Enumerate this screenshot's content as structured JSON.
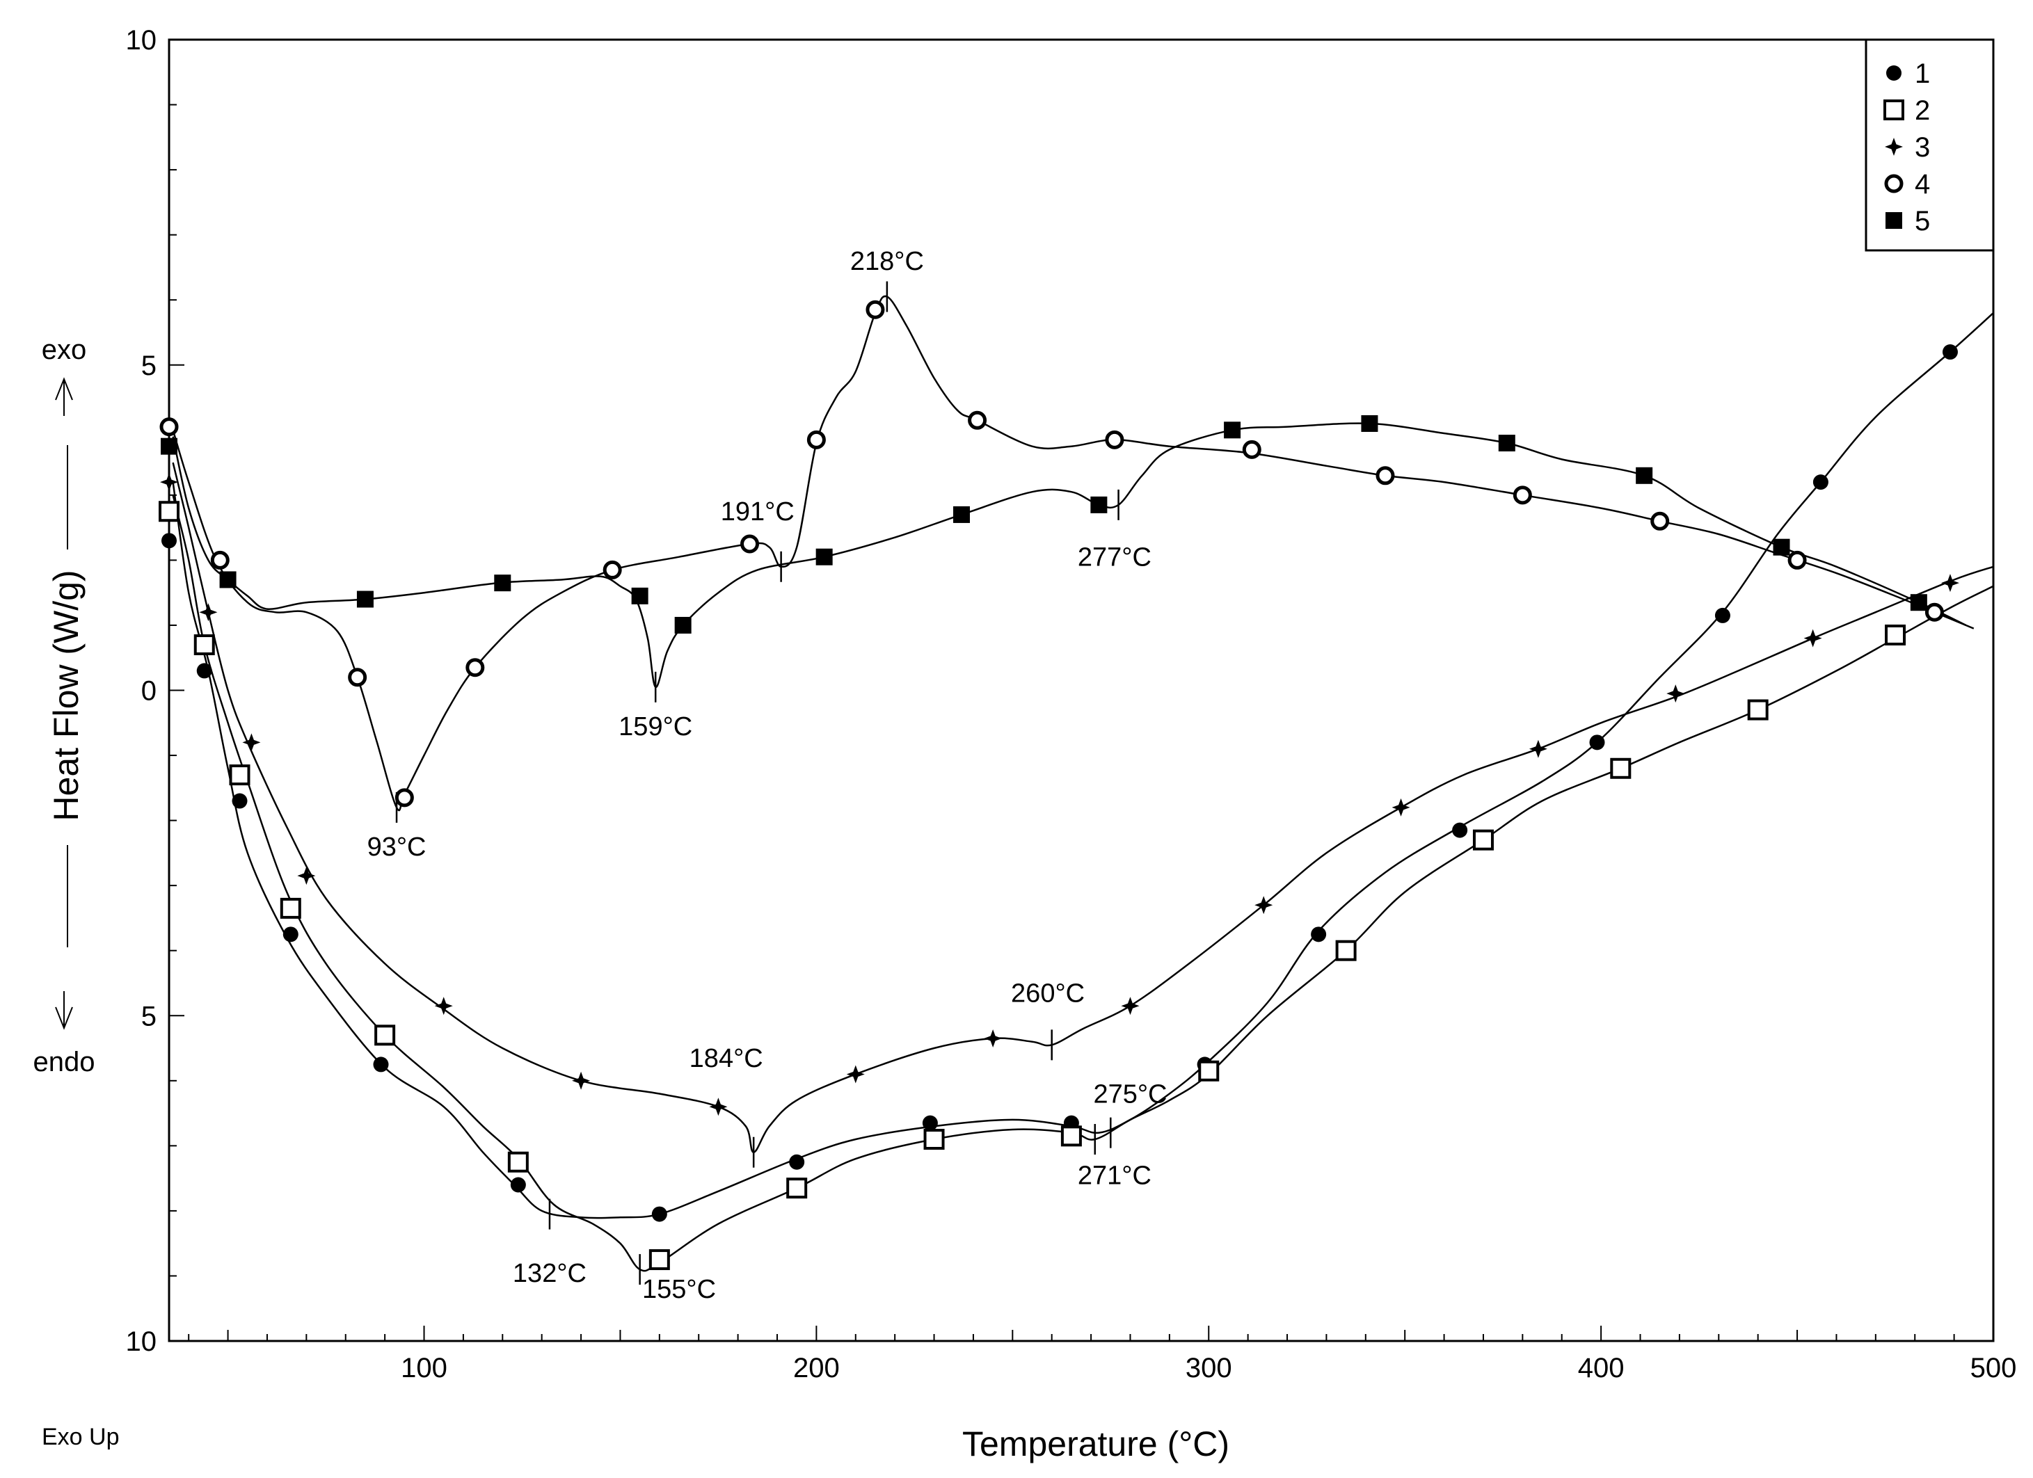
{
  "chart_data": {
    "type": "line",
    "title": "",
    "xlabel": "Temperature (°C)",
    "ylabel": "Heat Flow (W/g)",
    "xlim": [
      35,
      500
    ],
    "ylim": [
      -10,
      10
    ],
    "x_ticks": [
      100,
      200,
      300,
      400,
      500
    ],
    "y_ticks": [
      {
        "value": 10,
        "label": "10"
      },
      {
        "value": 5,
        "label": "5"
      },
      {
        "value": 0,
        "label": "0"
      },
      {
        "value": -5,
        "label": "5"
      },
      {
        "value": -10,
        "label": "10"
      }
    ],
    "exo_label": "exo",
    "endo_label": "endo",
    "corner_label": "Exo Up",
    "legend_position": "top-right",
    "series": [
      {
        "name": "1",
        "marker": "filled-circle",
        "curve": [
          [
            36,
            3.2
          ],
          [
            40,
            1.5
          ],
          [
            45,
            0.3
          ],
          [
            50,
            -1.2
          ],
          [
            55,
            -2.5
          ],
          [
            65,
            -3.8
          ],
          [
            75,
            -4.7
          ],
          [
            90,
            -5.8
          ],
          [
            105,
            -6.4
          ],
          [
            115,
            -7.1
          ],
          [
            123,
            -7.6
          ],
          [
            130,
            -8.0
          ],
          [
            140,
            -8.1
          ],
          [
            150,
            -8.1
          ],
          [
            160,
            -8.05
          ],
          [
            175,
            -7.7
          ],
          [
            195,
            -7.2
          ],
          [
            210,
            -6.9
          ],
          [
            230,
            -6.7
          ],
          [
            250,
            -6.6
          ],
          [
            265,
            -6.7
          ],
          [
            272,
            -6.8
          ],
          [
            280,
            -6.6
          ],
          [
            290,
            -6.2
          ],
          [
            300,
            -5.7
          ],
          [
            315,
            -4.8
          ],
          [
            328,
            -3.7
          ],
          [
            345,
            -2.8
          ],
          [
            364,
            -2.1
          ],
          [
            385,
            -1.4
          ],
          [
            399,
            -0.8
          ],
          [
            415,
            0.2
          ],
          [
            431,
            1.2
          ],
          [
            445,
            2.4
          ],
          [
            456,
            3.2
          ],
          [
            470,
            4.2
          ],
          [
            489,
            5.2
          ],
          [
            500,
            5.8
          ]
        ],
        "markers": [
          [
            35,
            2.3
          ],
          [
            44,
            0.3
          ],
          [
            53,
            -1.7
          ],
          [
            66,
            -3.75
          ],
          [
            89,
            -5.75
          ],
          [
            124,
            -7.6
          ],
          [
            160,
            -8.05
          ],
          [
            195,
            -7.25
          ],
          [
            229,
            -6.65
          ],
          [
            265,
            -6.65
          ],
          [
            299,
            -5.75
          ],
          [
            328,
            -3.75
          ],
          [
            364,
            -2.15
          ],
          [
            399,
            -0.8
          ],
          [
            431,
            1.15
          ],
          [
            456,
            3.2
          ],
          [
            489,
            5.2
          ]
        ]
      },
      {
        "name": "2",
        "marker": "open-square",
        "curve": [
          [
            36,
            3.0
          ],
          [
            40,
            2.0
          ],
          [
            44,
            0.7
          ],
          [
            50,
            -0.5
          ],
          [
            55,
            -1.4
          ],
          [
            65,
            -3.1
          ],
          [
            75,
            -4.2
          ],
          [
            90,
            -5.3
          ],
          [
            105,
            -6.1
          ],
          [
            115,
            -6.7
          ],
          [
            124,
            -7.2
          ],
          [
            133,
            -7.9
          ],
          [
            143,
            -8.2
          ],
          [
            150,
            -8.5
          ],
          [
            155,
            -8.9
          ],
          [
            160,
            -8.8
          ],
          [
            175,
            -8.2
          ],
          [
            195,
            -7.65
          ],
          [
            210,
            -7.2
          ],
          [
            230,
            -6.9
          ],
          [
            250,
            -6.75
          ],
          [
            265,
            -6.8
          ],
          [
            271,
            -6.9
          ],
          [
            280,
            -6.6
          ],
          [
            290,
            -6.3
          ],
          [
            300,
            -5.9
          ],
          [
            315,
            -5.0
          ],
          [
            335,
            -4.0
          ],
          [
            350,
            -3.1
          ],
          [
            370,
            -2.3
          ],
          [
            385,
            -1.7
          ],
          [
            405,
            -1.2
          ],
          [
            420,
            -0.8
          ],
          [
            440,
            -0.3
          ],
          [
            460,
            0.3
          ],
          [
            475,
            0.8
          ],
          [
            490,
            1.3
          ],
          [
            500,
            1.6
          ]
        ],
        "markers": [
          [
            35,
            2.75
          ],
          [
            44,
            0.7
          ],
          [
            53,
            -1.3
          ],
          [
            66,
            -3.35
          ],
          [
            90,
            -5.3
          ],
          [
            124,
            -7.25
          ],
          [
            160,
            -8.75
          ],
          [
            195,
            -7.65
          ],
          [
            230,
            -6.9
          ],
          [
            265,
            -6.85
          ],
          [
            300,
            -5.85
          ],
          [
            335,
            -4.0
          ],
          [
            370,
            -2.3
          ],
          [
            405,
            -1.2
          ],
          [
            440,
            -0.3
          ],
          [
            475,
            0.85
          ]
        ]
      },
      {
        "name": "3",
        "marker": "star",
        "curve": [
          [
            36,
            3.5
          ],
          [
            40,
            2.5
          ],
          [
            45,
            1.2
          ],
          [
            50,
            0.0
          ],
          [
            55,
            -0.8
          ],
          [
            65,
            -2.1
          ],
          [
            75,
            -3.2
          ],
          [
            90,
            -4.2
          ],
          [
            105,
            -4.9
          ],
          [
            120,
            -5.5
          ],
          [
            140,
            -6.0
          ],
          [
            160,
            -6.2
          ],
          [
            175,
            -6.4
          ],
          [
            182,
            -6.7
          ],
          [
            184,
            -7.1
          ],
          [
            188,
            -6.7
          ],
          [
            195,
            -6.3
          ],
          [
            210,
            -5.9
          ],
          [
            230,
            -5.5
          ],
          [
            245,
            -5.35
          ],
          [
            255,
            -5.4
          ],
          [
            260,
            -5.45
          ],
          [
            268,
            -5.2
          ],
          [
            280,
            -4.85
          ],
          [
            295,
            -4.2
          ],
          [
            314,
            -3.3
          ],
          [
            330,
            -2.5
          ],
          [
            349,
            -1.8
          ],
          [
            365,
            -1.3
          ],
          [
            384,
            -0.9
          ],
          [
            400,
            -0.5
          ],
          [
            419,
            -0.1
          ],
          [
            435,
            0.3
          ],
          [
            454,
            0.8
          ],
          [
            470,
            1.2
          ],
          [
            490,
            1.7
          ],
          [
            500,
            1.9
          ]
        ],
        "markers": [
          [
            35,
            3.2
          ],
          [
            45,
            1.2
          ],
          [
            56,
            -0.8
          ],
          [
            70,
            -2.85
          ],
          [
            105,
            -4.85
          ],
          [
            140,
            -6.0
          ],
          [
            175,
            -6.4
          ],
          [
            210,
            -5.9
          ],
          [
            245,
            -5.35
          ],
          [
            280,
            -4.85
          ],
          [
            314,
            -3.3
          ],
          [
            349,
            -1.8
          ],
          [
            384,
            -0.9
          ],
          [
            419,
            -0.05
          ],
          [
            454,
            0.8
          ],
          [
            489,
            1.65
          ]
        ]
      },
      {
        "name": "4",
        "marker": "open-circle",
        "curve": [
          [
            36,
            4.0
          ],
          [
            40,
            3.2
          ],
          [
            47,
            2.0
          ],
          [
            55,
            1.35
          ],
          [
            62,
            1.2
          ],
          [
            70,
            1.2
          ],
          [
            78,
            0.9
          ],
          [
            83,
            0.2
          ],
          [
            88,
            -0.8
          ],
          [
            93,
            -1.8
          ],
          [
            95,
            -1.6
          ],
          [
            100,
            -1.0
          ],
          [
            106,
            -0.3
          ],
          [
            113,
            0.35
          ],
          [
            125,
            1.1
          ],
          [
            135,
            1.5
          ],
          [
            148,
            1.85
          ],
          [
            165,
            2.05
          ],
          [
            183,
            2.25
          ],
          [
            188,
            2.2
          ],
          [
            191,
            1.9
          ],
          [
            195,
            2.2
          ],
          [
            200,
            3.8
          ],
          [
            205,
            4.5
          ],
          [
            210,
            4.9
          ],
          [
            215,
            5.8
          ],
          [
            218,
            6.05
          ],
          [
            223,
            5.6
          ],
          [
            230,
            4.8
          ],
          [
            236,
            4.3
          ],
          [
            241,
            4.15
          ],
          [
            255,
            3.75
          ],
          [
            265,
            3.75
          ],
          [
            276,
            3.85
          ],
          [
            290,
            3.75
          ],
          [
            310,
            3.65
          ],
          [
            330,
            3.45
          ],
          [
            345,
            3.3
          ],
          [
            360,
            3.2
          ],
          [
            380,
            3.0
          ],
          [
            400,
            2.8
          ],
          [
            415,
            2.6
          ],
          [
            430,
            2.4
          ],
          [
            445,
            2.1
          ],
          [
            460,
            1.8
          ],
          [
            475,
            1.45
          ],
          [
            485,
            1.2
          ],
          [
            495,
            0.95
          ]
        ],
        "markers": [
          [
            35,
            4.05
          ],
          [
            48,
            2.0
          ],
          [
            83,
            0.2
          ],
          [
            95,
            -1.65
          ],
          [
            113,
            0.35
          ],
          [
            148,
            1.85
          ],
          [
            183,
            2.25
          ],
          [
            200,
            3.85
          ],
          [
            215,
            5.85
          ],
          [
            241,
            4.15
          ],
          [
            276,
            3.85
          ],
          [
            311,
            3.7
          ],
          [
            345,
            3.3
          ],
          [
            380,
            3.0
          ],
          [
            415,
            2.6
          ],
          [
            450,
            2.0
          ],
          [
            485,
            1.2
          ]
        ]
      },
      {
        "name": "5",
        "marker": "filled-square",
        "curve": [
          [
            36,
            3.9
          ],
          [
            40,
            2.8
          ],
          [
            45,
            2.0
          ],
          [
            50,
            1.7
          ],
          [
            55,
            1.45
          ],
          [
            60,
            1.25
          ],
          [
            70,
            1.35
          ],
          [
            85,
            1.4
          ],
          [
            100,
            1.5
          ],
          [
            119,
            1.65
          ],
          [
            135,
            1.7
          ],
          [
            145,
            1.75
          ],
          [
            150,
            1.6
          ],
          [
            154,
            1.4
          ],
          [
            157,
            0.8
          ],
          [
            159,
            0.05
          ],
          [
            162,
            0.6
          ],
          [
            166,
            1.0
          ],
          [
            175,
            1.5
          ],
          [
            185,
            1.85
          ],
          [
            202,
            2.05
          ],
          [
            220,
            2.35
          ],
          [
            237,
            2.7
          ],
          [
            255,
            3.05
          ],
          [
            265,
            3.05
          ],
          [
            272,
            2.85
          ],
          [
            277,
            2.85
          ],
          [
            283,
            3.3
          ],
          [
            290,
            3.7
          ],
          [
            306,
            4.0
          ],
          [
            320,
            4.05
          ],
          [
            341,
            4.1
          ],
          [
            360,
            3.95
          ],
          [
            376,
            3.8
          ],
          [
            390,
            3.55
          ],
          [
            411,
            3.3
          ],
          [
            425,
            2.8
          ],
          [
            446,
            2.2
          ],
          [
            460,
            1.9
          ],
          [
            481,
            1.35
          ],
          [
            493,
            1.0
          ]
        ],
        "markers": [
          [
            35,
            3.75
          ],
          [
            50,
            1.7
          ],
          [
            85,
            1.4
          ],
          [
            120,
            1.65
          ],
          [
            155,
            1.45
          ],
          [
            166,
            1.0
          ],
          [
            202,
            2.05
          ],
          [
            237,
            2.7
          ],
          [
            272,
            2.85
          ],
          [
            306,
            4.0
          ],
          [
            341,
            4.1
          ],
          [
            376,
            3.8
          ],
          [
            411,
            3.3
          ],
          [
            446,
            2.2
          ],
          [
            481,
            1.35
          ]
        ]
      }
    ],
    "annotations": [
      {
        "text": "218°C",
        "x": 218,
        "y": 6.6
      },
      {
        "text": "191°C",
        "x": 185,
        "y": 2.75
      },
      {
        "text": "277°C",
        "x": 276,
        "y": 2.05
      },
      {
        "text": "159°C",
        "x": 159,
        "y": -0.55
      },
      {
        "text": "93°C",
        "x": 93,
        "y": -2.4
      },
      {
        "text": "260°C",
        "x": 259,
        "y": -4.65
      },
      {
        "text": "184°C",
        "x": 177,
        "y": -5.65
      },
      {
        "text": "275°C",
        "x": 280,
        "y": -6.2
      },
      {
        "text": "271°C",
        "x": 276,
        "y": -7.45
      },
      {
        "text": "132°C",
        "x": 132,
        "y": -8.95
      },
      {
        "text": "155°C",
        "x": 165,
        "y": -9.2
      }
    ],
    "tick_marks": [
      [
        93,
        -1.8
      ],
      [
        159,
        0.05
      ],
      [
        191,
        1.9
      ],
      [
        218,
        6.05
      ],
      [
        277,
        2.85
      ],
      [
        184,
        -7.1
      ],
      [
        260,
        -5.45
      ],
      [
        271,
        -6.9
      ],
      [
        275,
        -6.8
      ],
      [
        132,
        -8.05
      ],
      [
        155,
        -8.9
      ]
    ]
  }
}
